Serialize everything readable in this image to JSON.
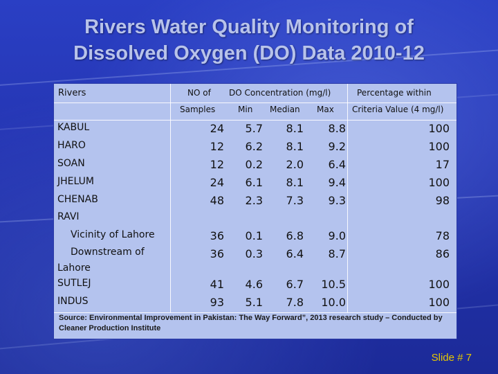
{
  "title": {
    "line1": "Rivers Water Quality Monitoring of",
    "line2": "Dissolved Oxygen (DO) Data 2010-12"
  },
  "table": {
    "headers": {
      "rivers": "Rivers",
      "no_of": "NO of",
      "samples": "Samples",
      "do_conc": "DO Concentration (mg/l)",
      "min": "Min",
      "median": "Median",
      "max": "Max",
      "pct_within": "Percentage within",
      "criteria": "Criteria Value (4 mg/l)"
    },
    "rows": [
      {
        "name": "KABUL",
        "samples": "24",
        "min": "5.7",
        "median": "8.1",
        "max": "8.8",
        "pct": "100"
      },
      {
        "name": "HARO",
        "samples": "12",
        "min": "6.2",
        "median": "8.1",
        "max": "9.2",
        "pct": "100"
      },
      {
        "name": "SOAN",
        "samples": "12",
        "min": "0.2",
        "median": "2.0",
        "max": "6.4",
        "pct": "17"
      },
      {
        "name": "JHELUM",
        "samples": "24",
        "min": "6.1",
        "median": "8.1",
        "max": "9.4",
        "pct": "100"
      },
      {
        "name": "CHENAB",
        "samples": "48",
        "min": "2.3",
        "median": "7.3",
        "max": "9.3",
        "pct": "98"
      },
      {
        "name": "RAVI"
      },
      {
        "name": "Vicinity of Lahore",
        "samples": "36",
        "min": "0.1",
        "median": "6.8",
        "max": "9.0",
        "pct": "78"
      },
      {
        "name1": "Downstream of",
        "name2": "Lahore",
        "samples": "36",
        "min": "0.3",
        "median": "6.4",
        "max": "8.7",
        "pct": "86"
      },
      {
        "name": "SUTLEJ",
        "samples": "41",
        "min": "4.6",
        "median": "6.7",
        "max": "10.5",
        "pct": "100"
      },
      {
        "name": "INDUS",
        "samples": "93",
        "min": "5.1",
        "median": "7.8",
        "max": "10.0",
        "pct": "100"
      }
    ],
    "source": "Source: Environmental Improvement in Pakistan: The Way Forward”, 2013 research study – Conducted by Cleaner Production Institute"
  },
  "footer": {
    "slide": "Slide # 7"
  }
}
